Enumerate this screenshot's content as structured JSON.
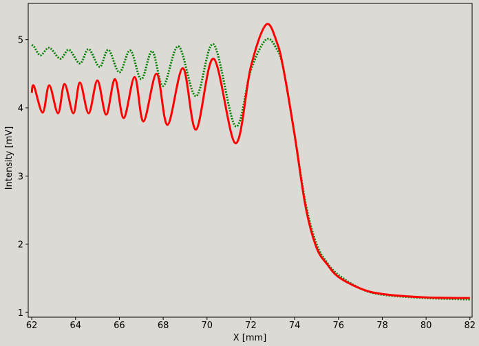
{
  "chart_data": {
    "type": "line",
    "xlabel": "X [mm]",
    "ylabel": "Intensity [mV]",
    "xlim": [
      61.84,
      82.1
    ],
    "ylim": [
      0.93,
      5.53
    ],
    "xticks": [
      62,
      64,
      66,
      68,
      70,
      72,
      74,
      76,
      78,
      80,
      82
    ],
    "yticks": [
      1,
      2,
      3,
      4,
      5
    ],
    "series": [
      {
        "color": "#008000",
        "style": "dotted",
        "x": [
          62.0,
          62.1,
          62.4,
          62.8,
          63.3,
          63.7,
          64.2,
          64.6,
          65.1,
          65.5,
          66.0,
          66.5,
          67.0,
          67.5,
          68.0,
          68.7,
          69.5,
          70.3,
          71.3,
          72.0,
          72.7,
          73.2,
          73.5,
          74.0,
          74.5,
          75.0,
          75.5,
          76.0,
          77.0,
          78.0,
          80.0,
          82.0
        ],
        "values": [
          4.92,
          4.9,
          4.77,
          4.88,
          4.72,
          4.85,
          4.65,
          4.86,
          4.6,
          4.85,
          4.52,
          4.84,
          4.42,
          4.83,
          4.32,
          4.9,
          4.17,
          4.93,
          3.73,
          4.55,
          5.0,
          4.85,
          4.55,
          3.6,
          2.6,
          2.0,
          1.72,
          1.55,
          1.35,
          1.26,
          1.21,
          1.19
        ]
      },
      {
        "color": "#ff0000",
        "style": "solid",
        "x": [
          62.0,
          62.1,
          62.5,
          62.8,
          63.2,
          63.5,
          63.9,
          64.2,
          64.6,
          65.0,
          65.4,
          65.8,
          66.2,
          66.7,
          67.1,
          67.7,
          68.2,
          68.9,
          69.5,
          70.3,
          71.3,
          72.0,
          72.7,
          73.2,
          73.5,
          74.0,
          74.5,
          75.0,
          75.5,
          76.0,
          77.0,
          78.0,
          80.0,
          82.0
        ],
        "values": [
          4.22,
          4.32,
          3.93,
          4.33,
          3.92,
          4.35,
          3.92,
          4.37,
          3.92,
          4.4,
          3.9,
          4.42,
          3.85,
          4.45,
          3.8,
          4.5,
          3.75,
          4.58,
          3.68,
          4.72,
          3.48,
          4.6,
          5.22,
          4.95,
          4.55,
          3.6,
          2.55,
          1.95,
          1.7,
          1.52,
          1.35,
          1.27,
          1.22,
          1.21
        ]
      }
    ]
  }
}
